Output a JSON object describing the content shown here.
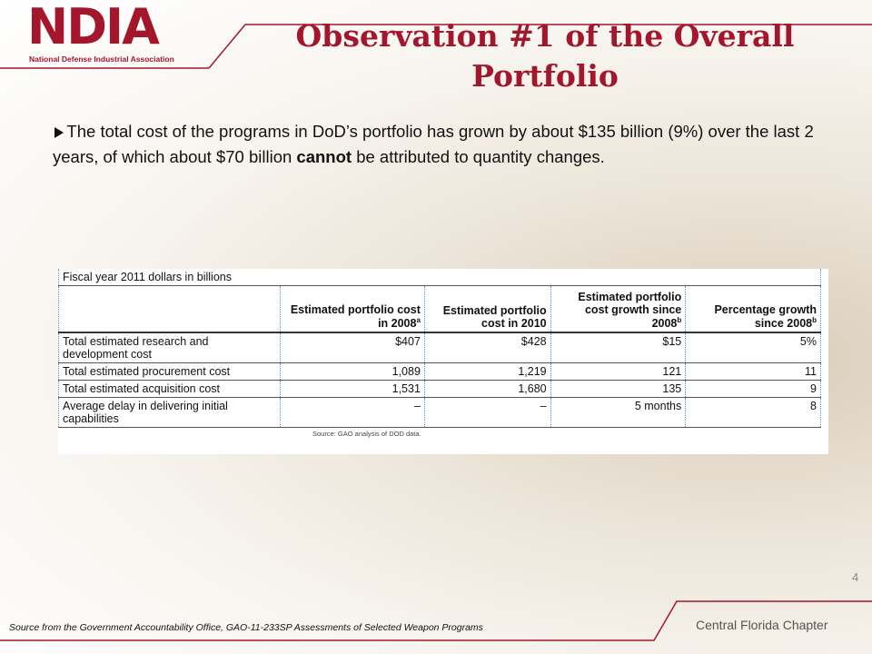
{
  "logo": {
    "mark": "NDIA",
    "name": "National Defense Industrial Association"
  },
  "title": "Observation #1 of the Overall Portfolio",
  "bullet": {
    "before": "The total cost of the programs in DoD’s portfolio has grown by about $135 billion (9%) over the last 2 years, of which about $70 billion ",
    "emphasis": "cannot",
    "after": " be attributed to quantity changes."
  },
  "table": {
    "caption": "Fiscal year 2011 dollars in billions",
    "header": [
      {
        "text": "Estimated portfolio cost in 2008",
        "note": "a"
      },
      {
        "text": "Estimated portfolio cost in 2010"
      },
      {
        "text": "Estimated portfolio cost growth since 2008",
        "note": "b"
      },
      {
        "text": "Percentage growth since 2008",
        "note": "b"
      }
    ],
    "rows": [
      [
        "Total estimated research and development cost",
        "$407",
        "$428",
        "$15",
        "5%"
      ],
      [
        "Total estimated procurement cost",
        "1,089",
        "1,219",
        "121",
        "11"
      ],
      [
        "Total estimated acquisition cost",
        "1,531",
        "1,680",
        "135",
        "9"
      ],
      [
        "Average delay in delivering initial capabilities",
        "–",
        "–",
        "5 months",
        "8"
      ]
    ],
    "source": "Source: GAO analysis of DOD data."
  },
  "page_number": "4",
  "footer": {
    "source": "Source from the Government Accountability Office, GAO-11-233SP Assessments of Selected Weapon Programs",
    "chapter": "Central Florida Chapter"
  }
}
